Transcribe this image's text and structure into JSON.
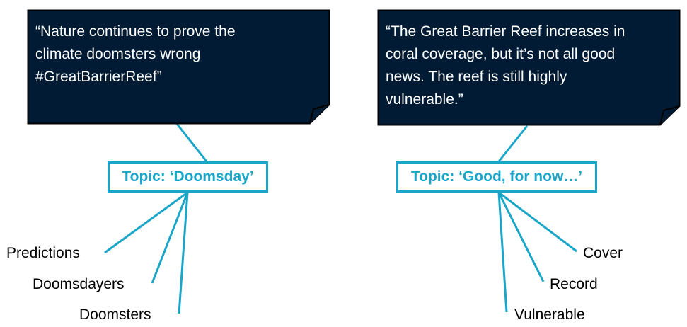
{
  "colors": {
    "note_fill": "#001B33",
    "note_stroke": "#000000",
    "accent": "#1AA6C9",
    "text_light": "#FFFFFF",
    "text_dark": "#000000"
  },
  "left": {
    "quote": "“Nature continues to prove the\nclimate doomsters wrong\n#GreatBarrierReef”",
    "topic": "Topic: ‘Doomsday’",
    "words": [
      "Predictions",
      "Doomsdayers",
      "Doomsters"
    ]
  },
  "right": {
    "quote": "“The Great Barrier Reef increases in\ncoral coverage, but it’s not all good\nnews. The reef is still highly\nvulnerable.”",
    "topic": "Topic: ‘Good, for now…’",
    "words": [
      "Cover",
      "Record",
      "Vulnerable"
    ]
  }
}
